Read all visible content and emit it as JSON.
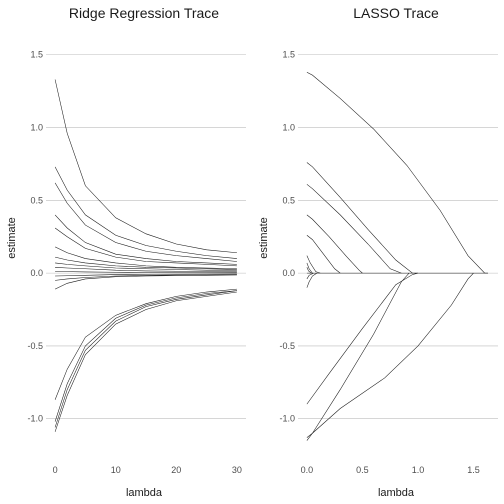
{
  "chart_data": [
    {
      "type": "line",
      "title": "Ridge Regression Trace",
      "xlabel": "lambda",
      "ylabel": "estimate",
      "xlim": [
        -1.5,
        31.5
      ],
      "ylim": [
        -1.27,
        1.67
      ],
      "xticks": [
        0,
        10,
        20,
        30
      ],
      "yticks": [
        -1.0,
        -0.5,
        0.0,
        0.5,
        1.0,
        1.5
      ],
      "ytick_labels": [
        "-1.0",
        "-0.5",
        "0.0",
        "0.5",
        "1.0",
        "1.5"
      ],
      "grid": "horizontal",
      "legend": "none",
      "series": [
        {
          "x": [
            0,
            2,
            5,
            10,
            15,
            20,
            25,
            30
          ],
          "y": [
            1.33,
            0.96,
            0.6,
            0.38,
            0.27,
            0.2,
            0.16,
            0.14
          ]
        },
        {
          "x": [
            0,
            2,
            5,
            10,
            15,
            20,
            25,
            30
          ],
          "y": [
            0.73,
            0.57,
            0.4,
            0.26,
            0.19,
            0.15,
            0.12,
            0.1
          ]
        },
        {
          "x": [
            0,
            2,
            5,
            10,
            15,
            20,
            25,
            30
          ],
          "y": [
            0.62,
            0.48,
            0.33,
            0.21,
            0.15,
            0.12,
            0.1,
            0.08
          ]
        },
        {
          "x": [
            0,
            2,
            5,
            10,
            15,
            20,
            25,
            30
          ],
          "y": [
            0.4,
            0.31,
            0.21,
            0.13,
            0.1,
            0.08,
            0.07,
            0.06
          ]
        },
        {
          "x": [
            0,
            2,
            5,
            10,
            15,
            20,
            25,
            30
          ],
          "y": [
            0.31,
            0.25,
            0.17,
            0.11,
            0.08,
            0.07,
            0.06,
            0.05
          ]
        },
        {
          "x": [
            0,
            2,
            5,
            10,
            15,
            20,
            25,
            30
          ],
          "y": [
            0.18,
            0.14,
            0.1,
            0.07,
            0.05,
            0.04,
            0.035,
            0.03
          ]
        },
        {
          "x": [
            0,
            2,
            5,
            10,
            15,
            20,
            25,
            30
          ],
          "y": [
            0.11,
            0.09,
            0.07,
            0.05,
            0.04,
            0.035,
            0.03,
            0.025
          ]
        },
        {
          "x": [
            0,
            2,
            5,
            10,
            15,
            20,
            25,
            30
          ],
          "y": [
            0.07,
            0.06,
            0.05,
            0.035,
            0.03,
            0.025,
            0.02,
            0.02
          ]
        },
        {
          "x": [
            0,
            2,
            5,
            10,
            15,
            20,
            25,
            30
          ],
          "y": [
            0.04,
            0.035,
            0.03,
            0.02,
            0.015,
            0.013,
            0.012,
            0.01
          ]
        },
        {
          "x": [
            0,
            2,
            5,
            10,
            15,
            20,
            25,
            30
          ],
          "y": [
            0.01,
            0.01,
            0.008,
            0.006,
            0.005,
            0.004,
            0.004,
            0.003
          ]
        },
        {
          "x": [
            0,
            2,
            5,
            10,
            15,
            20,
            25,
            30
          ],
          "y": [
            -0.02,
            -0.018,
            -0.015,
            -0.01,
            -0.008,
            -0.007,
            -0.006,
            -0.005
          ]
        },
        {
          "x": [
            0,
            2,
            5,
            10,
            15,
            20,
            25,
            30
          ],
          "y": [
            -0.05,
            -0.04,
            -0.03,
            -0.02,
            -0.016,
            -0.013,
            -0.012,
            -0.01
          ]
        },
        {
          "x": [
            0,
            2,
            5,
            10,
            15,
            20,
            25,
            30
          ],
          "y": [
            -0.11,
            -0.07,
            -0.04,
            -0.025,
            -0.02,
            -0.017,
            -0.015,
            -0.013
          ]
        },
        {
          "x": [
            0,
            2,
            5,
            10,
            15,
            20,
            25,
            30
          ],
          "y": [
            -0.87,
            -0.66,
            -0.44,
            -0.29,
            -0.21,
            -0.16,
            -0.13,
            -0.11
          ]
        },
        {
          "x": [
            0,
            2,
            5,
            10,
            15,
            20,
            25,
            30
          ],
          "y": [
            -1.02,
            -0.76,
            -0.5,
            -0.31,
            -0.22,
            -0.17,
            -0.14,
            -0.12
          ]
        },
        {
          "x": [
            0,
            2,
            5,
            10,
            15,
            20,
            25,
            30
          ],
          "y": [
            -1.06,
            -0.8,
            -0.53,
            -0.33,
            -0.23,
            -0.18,
            -0.15,
            -0.12
          ]
        },
        {
          "x": [
            0,
            2,
            5,
            10,
            15,
            20,
            25,
            30
          ],
          "y": [
            -1.09,
            -0.84,
            -0.56,
            -0.35,
            -0.25,
            -0.19,
            -0.16,
            -0.13
          ]
        }
      ]
    },
    {
      "type": "line",
      "title": "LASSO Trace",
      "xlabel": "lambda",
      "ylabel": "estimate",
      "xlim": [
        -0.08,
        1.72
      ],
      "ylim": [
        -1.27,
        1.67
      ],
      "xticks": [
        0.0,
        0.5,
        1.0,
        1.5
      ],
      "xtick_labels": [
        "0.0",
        "0.5",
        "1.0",
        "1.5"
      ],
      "yticks": [
        -1.0,
        -0.5,
        0.0,
        0.5,
        1.0,
        1.5
      ],
      "ytick_labels": [
        "-1.0",
        "-0.5",
        "0.0",
        "0.5",
        "1.0",
        "1.5"
      ],
      "grid": "horizontal",
      "legend": "none",
      "series": [
        {
          "x": [
            0,
            0.05,
            0.3,
            0.6,
            0.9,
            1.2,
            1.45,
            1.6,
            1.63
          ],
          "y": [
            1.38,
            1.36,
            1.2,
            0.99,
            0.74,
            0.43,
            0.12,
            0.0,
            0.0
          ]
        },
        {
          "x": [
            0,
            0.05,
            0.3,
            0.55,
            0.8,
            0.95,
            1.0
          ],
          "y": [
            0.76,
            0.73,
            0.52,
            0.3,
            0.09,
            0.0,
            0.0
          ]
        },
        {
          "x": [
            0,
            0.05,
            0.3,
            0.55,
            0.75,
            0.85
          ],
          "y": [
            0.61,
            0.58,
            0.4,
            0.2,
            0.03,
            0.0
          ]
        },
        {
          "x": [
            0,
            0.05,
            0.2,
            0.35,
            0.47,
            0.5
          ],
          "y": [
            0.4,
            0.37,
            0.25,
            0.12,
            0.02,
            0.0
          ]
        },
        {
          "x": [
            0,
            0.05,
            0.15,
            0.25,
            0.3
          ],
          "y": [
            0.26,
            0.23,
            0.13,
            0.03,
            0.0
          ]
        },
        {
          "x": [
            0,
            0.03,
            0.08,
            0.12
          ],
          "y": [
            0.12,
            0.07,
            0.01,
            0.0
          ]
        },
        {
          "x": [
            0,
            0.02,
            0.05
          ],
          "y": [
            0.07,
            0.03,
            0.0
          ]
        },
        {
          "x": [
            0,
            0.015,
            0.04
          ],
          "y": [
            0.04,
            0.015,
            0.0
          ]
        },
        {
          "x": [
            0,
            0.02,
            0.06
          ],
          "y": [
            -0.04,
            -0.015,
            0.0
          ]
        },
        {
          "x": [
            0,
            0.02,
            0.05,
            0.09
          ],
          "y": [
            -0.1,
            -0.06,
            -0.02,
            0.0
          ]
        },
        {
          "x": [
            0,
            0.2,
            0.5,
            0.8,
            0.95,
            1.0
          ],
          "y": [
            -0.9,
            -0.69,
            -0.38,
            -0.08,
            -0.01,
            0.0
          ]
        },
        {
          "x": [
            0,
            0.05,
            0.3,
            0.6,
            0.85,
            0.92
          ],
          "y": [
            -1.13,
            -1.1,
            -0.8,
            -0.42,
            -0.06,
            0.0
          ]
        },
        {
          "x": [
            0,
            0.05,
            0.3,
            0.7,
            1.0,
            1.3,
            1.45,
            1.5
          ],
          "y": [
            -1.15,
            -1.1,
            -0.93,
            -0.72,
            -0.5,
            -0.22,
            -0.04,
            0.0
          ]
        },
        {
          "x": [
            0,
            1.63
          ],
          "y": [
            0.0,
            0.0
          ]
        }
      ]
    }
  ]
}
